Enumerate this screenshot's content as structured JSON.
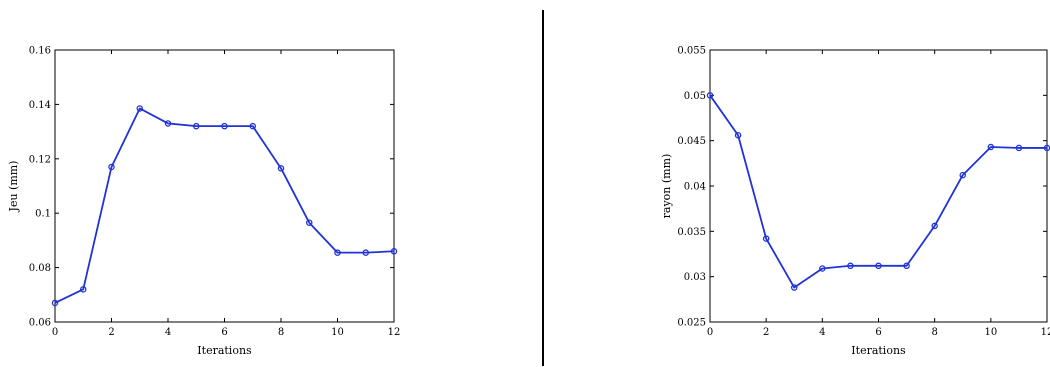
{
  "chart_data": [
    {
      "type": "line",
      "title": "",
      "xlabel": "Iterations",
      "ylabel": "Jeu (mm)",
      "xlim": [
        0,
        12
      ],
      "ylim": [
        0.06,
        0.16
      ],
      "xticks": [
        0,
        2,
        4,
        6,
        8,
        10,
        12
      ],
      "yticks": [
        0.06,
        0.08,
        0.1,
        0.12,
        0.14,
        0.16
      ],
      "ytick_labels": [
        "0.06",
        "0.08",
        "0.1",
        "0.12",
        "0.14",
        "0.16"
      ],
      "grid": false,
      "series": [
        {
          "x": [
            0,
            1,
            2,
            3,
            4,
            5,
            6,
            7,
            8,
            9,
            10,
            11,
            12
          ],
          "y": [
            0.067,
            0.072,
            0.117,
            0.1385,
            0.133,
            0.132,
            0.132,
            0.132,
            0.1165,
            0.0965,
            0.0855,
            0.0855,
            0.086
          ],
          "color": "#1f33d6",
          "marker": "circle"
        }
      ]
    },
    {
      "type": "line",
      "title": "",
      "xlabel": "Iterations",
      "ylabel": "rayon (mm)",
      "xlim": [
        0,
        12
      ],
      "ylim": [
        0.025,
        0.055
      ],
      "xticks": [
        0,
        2,
        4,
        6,
        8,
        10,
        12
      ],
      "yticks": [
        0.025,
        0.03,
        0.035,
        0.04,
        0.045,
        0.05,
        0.055
      ],
      "ytick_labels": [
        "0.025",
        "0.03",
        "0.035",
        "0.04",
        "0.045",
        "0.05",
        "0.055"
      ],
      "grid": false,
      "series": [
        {
          "x": [
            0,
            1,
            2,
            3,
            4,
            5,
            6,
            7,
            8,
            9,
            10,
            11,
            12
          ],
          "y": [
            0.05,
            0.0456,
            0.0342,
            0.0288,
            0.0309,
            0.0312,
            0.0312,
            0.0312,
            0.0356,
            0.0412,
            0.0443,
            0.0442,
            0.0442
          ],
          "color": "#1f33d6",
          "marker": "circle"
        }
      ]
    }
  ]
}
